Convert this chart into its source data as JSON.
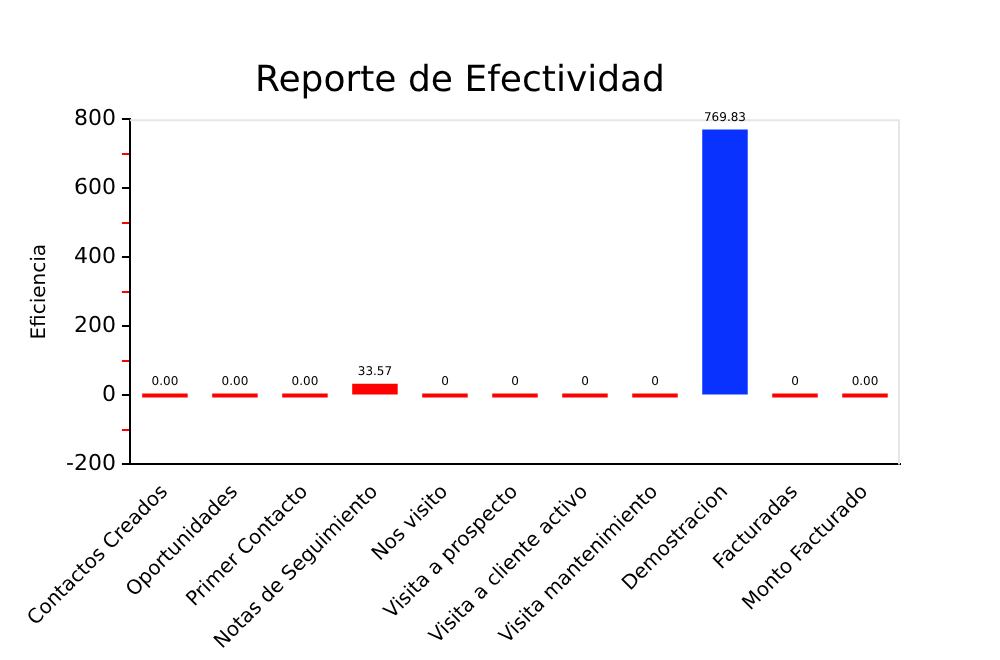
{
  "chart_data": {
    "type": "bar",
    "title": "Reporte de Efectividad",
    "ylabel": "Eficiencia",
    "categories": [
      "Contactos Creados",
      "Oportunidades",
      "Primer Contacto",
      "Notas de Seguimiento",
      "Nos visito",
      "Visita a prospecto",
      "Visita a cliente activo",
      "Visita mantenimiento",
      "Demostracion",
      "Facturadas",
      "Monto Facturado"
    ],
    "values": [
      0,
      0,
      0,
      33.57,
      0,
      0,
      0,
      0,
      769.83,
      0,
      0
    ],
    "colors": [
      "#ff0000",
      "#ff0000",
      "#ff0000",
      "#ff0000",
      "#ff0000",
      "#ff0000",
      "#ff0000",
      "#ff0000",
      "#0a32ff",
      "#ff0000",
      "#ff0000"
    ],
    "value_labels": [
      "0.00",
      "0.00",
      "0.00",
      "33.57",
      "0",
      "0",
      "0",
      "0",
      "769.83",
      "0",
      "0.00"
    ],
    "ylim": [
      -200,
      800
    ],
    "yticks": [
      -200,
      {
        "value": -100,
        "label": null
      },
      0,
      {
        "value": 100,
        "label": null
      },
      200,
      {
        "value": 300,
        "label": null
      },
      400,
      {
        "value": 500,
        "label": null
      },
      600,
      {
        "value": 700,
        "label": null
      },
      800
    ],
    "grid": false,
    "legend": false
  }
}
